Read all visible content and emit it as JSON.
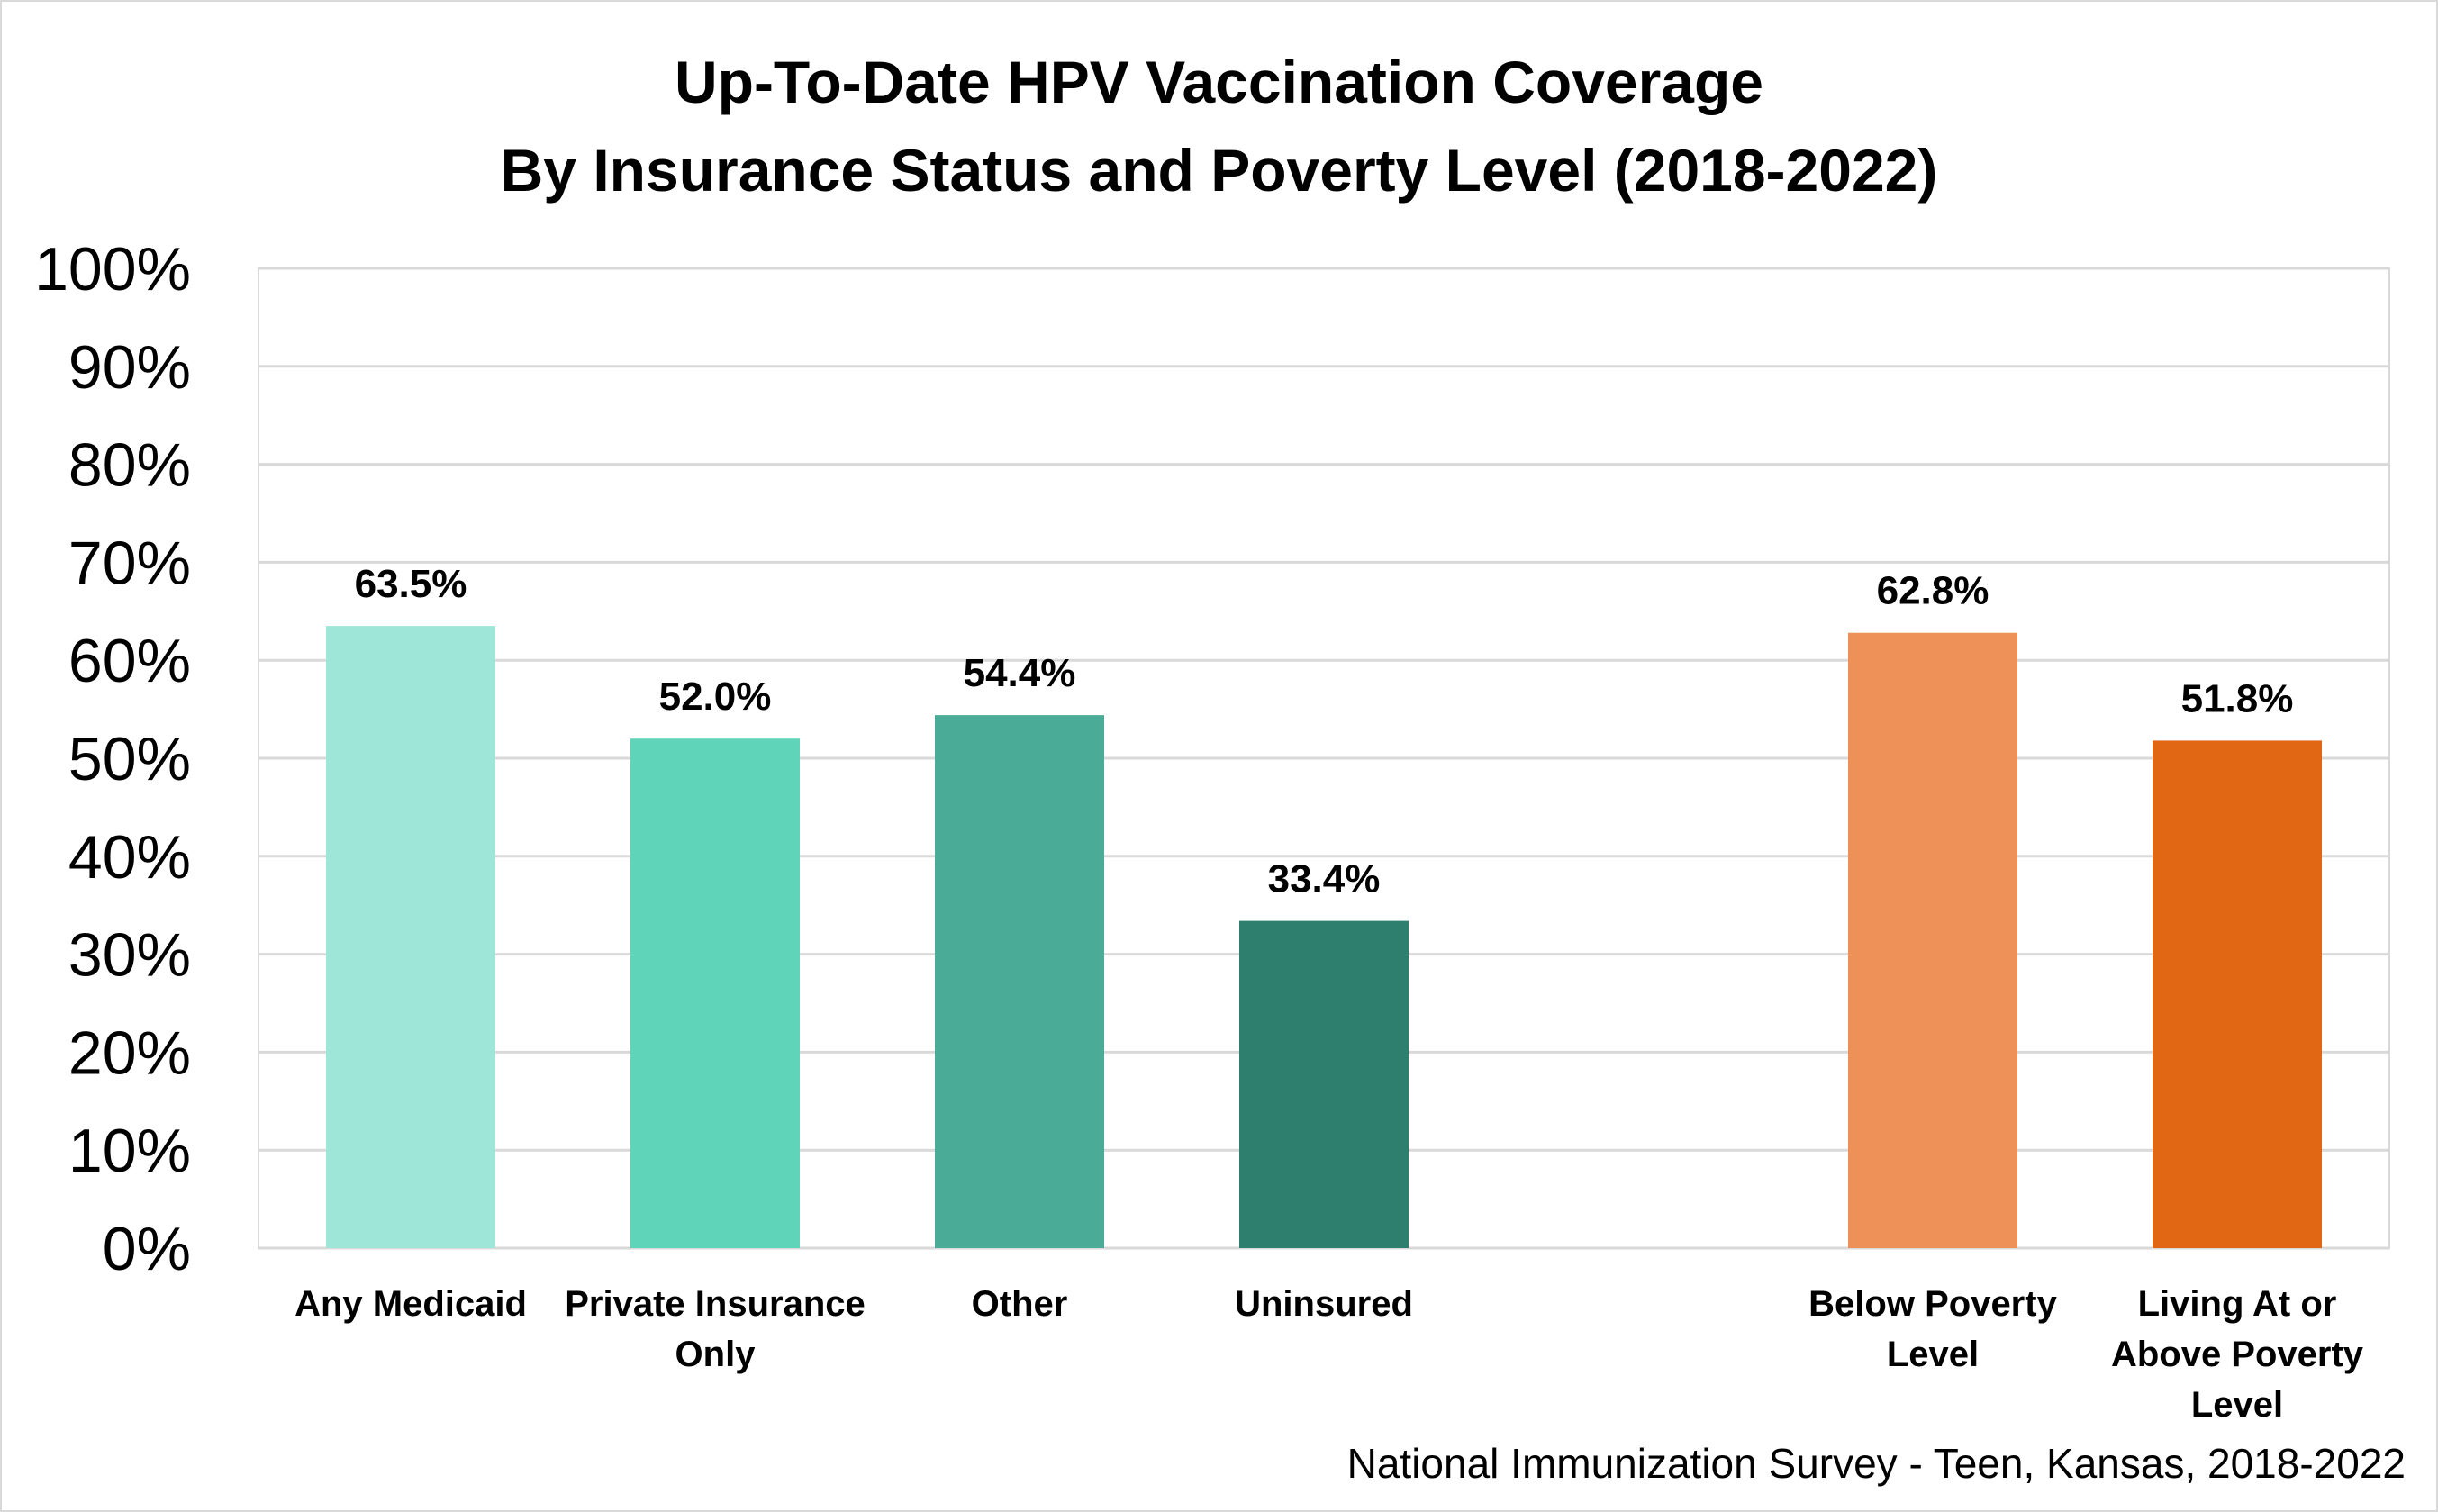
{
  "chart_data": {
    "type": "bar",
    "title": "Up-To-Date HPV Vaccination Coverage",
    "subtitle": "By Insurance Status and Poverty Level (2018-2022)",
    "categories": [
      "Any Medicaid",
      "Private Insurance Only",
      "Other",
      "Uninsured",
      "",
      "Below Poverty Level",
      "Living At or Above Poverty Level"
    ],
    "category_lines": [
      [
        "Any Medicaid"
      ],
      [
        "Private Insurance",
        "Only"
      ],
      [
        "Other"
      ],
      [
        "Uninsured"
      ],
      [],
      [
        "Below Poverty",
        "Level"
      ],
      [
        "Living At or",
        "Above Poverty",
        "Level"
      ]
    ],
    "values": [
      63.5,
      52.0,
      54.4,
      33.4,
      null,
      62.8,
      51.8
    ],
    "data_labels": [
      "63.5%",
      "52.0%",
      "54.4%",
      "33.4%",
      "",
      "62.8%",
      "51.8%"
    ],
    "colors": [
      "#9ee6d8",
      "#5fd4b9",
      "#4aab96",
      "#2e7f6e",
      "",
      "#ed9159",
      "#e26715"
    ],
    "ylim": [
      0,
      100
    ],
    "yticks": [
      "0%",
      "10%",
      "20%",
      "30%",
      "40%",
      "50%",
      "60%",
      "70%",
      "80%",
      "90%",
      "100%"
    ],
    "xlabel": "",
    "ylabel": "",
    "grid": true,
    "legend": "none",
    "gridline_color": "#d9d9d9",
    "source": "National Immunization Survey - Teen, Kansas, 2018-2022"
  }
}
